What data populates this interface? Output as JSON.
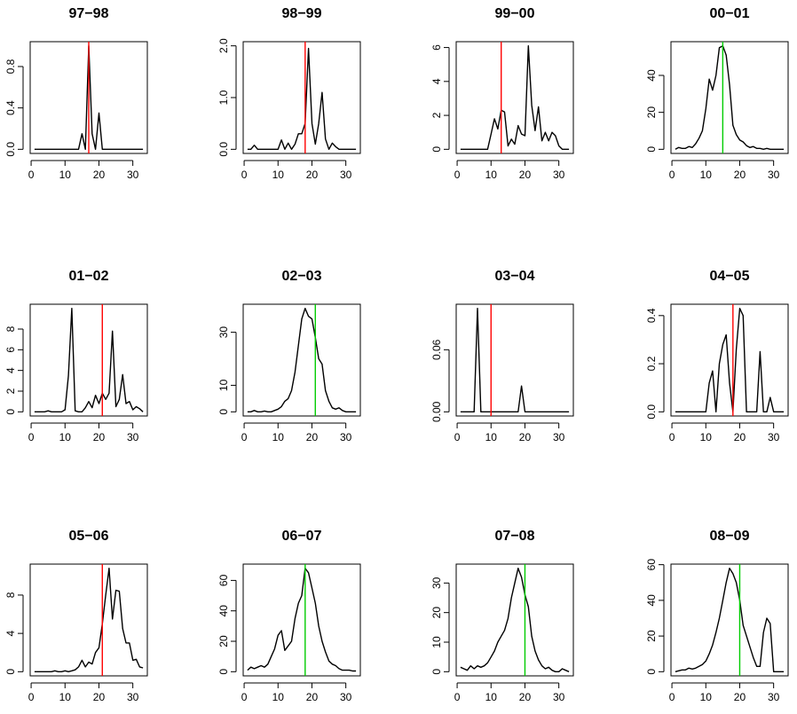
{
  "colors": {
    "series": "#000000",
    "marker_red": "#ff0000",
    "marker_green": "#00cc00",
    "frame": "#000000"
  },
  "chart_data": [
    {
      "type": "line",
      "title": "97−98",
      "x": [
        1,
        2,
        3,
        4,
        5,
        6,
        7,
        8,
        9,
        10,
        11,
        12,
        13,
        14,
        15,
        16,
        17,
        18,
        19,
        20,
        21,
        22,
        23,
        24,
        25,
        26,
        27,
        28,
        29,
        30,
        31,
        32,
        33
      ],
      "values": [
        0,
        0,
        0,
        0,
        0,
        0,
        0,
        0,
        0,
        0,
        0,
        0,
        0,
        0,
        0.15,
        0,
        1.0,
        0.15,
        0,
        0.35,
        0,
        0,
        0,
        0,
        0,
        0,
        0,
        0,
        0,
        0,
        0,
        0,
        0
      ],
      "marker": {
        "x": 17,
        "color": "red"
      },
      "xlim": [
        1,
        33
      ],
      "ylim": [
        0,
        1.0
      ],
      "xticks": [
        0,
        10,
        20,
        30
      ],
      "yticks": [
        0.0,
        0.4,
        0.8
      ],
      "xtick_labels": [
        "0",
        "10",
        "20",
        "30"
      ],
      "ytick_labels": [
        "0.0",
        "0.4",
        "0.8"
      ]
    },
    {
      "type": "line",
      "title": "98−99",
      "x": [
        1,
        2,
        3,
        4,
        5,
        6,
        7,
        8,
        9,
        10,
        11,
        12,
        13,
        14,
        15,
        16,
        17,
        18,
        19,
        20,
        21,
        22,
        23,
        24,
        25,
        26,
        27,
        28,
        29,
        30,
        31,
        32,
        33
      ],
      "values": [
        0,
        0,
        0.08,
        0,
        0,
        0,
        0,
        0,
        0,
        0,
        0.18,
        0,
        0.12,
        0,
        0.1,
        0.3,
        0.3,
        0.5,
        1.95,
        0.5,
        0.1,
        0.5,
        1.1,
        0.2,
        0,
        0.12,
        0.05,
        0,
        0,
        0,
        0,
        0,
        0
      ],
      "marker": {
        "x": 18,
        "color": "red"
      },
      "xlim": [
        1,
        33
      ],
      "ylim": [
        0,
        2.0
      ],
      "xticks": [
        0,
        10,
        20,
        30
      ],
      "yticks": [
        0.0,
        1.0,
        2.0
      ],
      "xtick_labels": [
        "0",
        "10",
        "20",
        "30"
      ],
      "ytick_labels": [
        "0.0",
        "1.0",
        "2.0"
      ]
    },
    {
      "type": "line",
      "title": "99−00",
      "x": [
        1,
        2,
        3,
        4,
        5,
        6,
        7,
        8,
        9,
        10,
        11,
        12,
        13,
        14,
        15,
        16,
        17,
        18,
        19,
        20,
        21,
        22,
        23,
        24,
        25,
        26,
        27,
        28,
        29,
        30,
        31,
        32,
        33
      ],
      "values": [
        0,
        0,
        0,
        0,
        0,
        0,
        0,
        0,
        0,
        0.9,
        1.8,
        1.2,
        2.3,
        2.2,
        0.2,
        0.6,
        0.3,
        1.4,
        0.9,
        0.8,
        6.1,
        2.6,
        1.1,
        2.5,
        0.5,
        1.0,
        0.5,
        1.0,
        0.8,
        0.2,
        0,
        0,
        0
      ],
      "marker": {
        "x": 13,
        "color": "red"
      },
      "xlim": [
        1,
        33
      ],
      "ylim": [
        0,
        6.1
      ],
      "xticks": [
        0,
        10,
        20,
        30
      ],
      "yticks": [
        0,
        2,
        4,
        6
      ],
      "xtick_labels": [
        "0",
        "10",
        "20",
        "30"
      ],
      "ytick_labels": [
        "0",
        "2",
        "4",
        "6"
      ]
    },
    {
      "type": "line",
      "title": "00−01",
      "x": [
        1,
        2,
        3,
        4,
        5,
        6,
        7,
        8,
        9,
        10,
        11,
        12,
        13,
        14,
        15,
        16,
        17,
        18,
        19,
        20,
        21,
        22,
        23,
        24,
        25,
        26,
        27,
        28,
        29,
        30,
        31,
        32,
        33
      ],
      "values": [
        0,
        1,
        0.5,
        0.5,
        1.5,
        1,
        3,
        6,
        10,
        22,
        38,
        32,
        40,
        55,
        56,
        51,
        35,
        13,
        8,
        5,
        4,
        2,
        1,
        1.5,
        0.5,
        0.5,
        0,
        0.5,
        0,
        0,
        0,
        0,
        0
      ],
      "marker": {
        "x": 15,
        "color": "green"
      },
      "xlim": [
        1,
        33
      ],
      "ylim": [
        0,
        56
      ],
      "xticks": [
        0,
        10,
        20,
        30
      ],
      "yticks": [
        0,
        20,
        40
      ],
      "xtick_labels": [
        "0",
        "10",
        "20",
        "30"
      ],
      "ytick_labels": [
        "0",
        "20",
        "40"
      ]
    },
    {
      "type": "line",
      "title": "01−02",
      "x": [
        1,
        2,
        3,
        4,
        5,
        6,
        7,
        8,
        9,
        10,
        11,
        12,
        13,
        14,
        15,
        16,
        17,
        18,
        19,
        20,
        21,
        22,
        23,
        24,
        25,
        26,
        27,
        28,
        29,
        30,
        31,
        32,
        33
      ],
      "values": [
        0,
        0,
        0,
        0,
        0.1,
        0,
        0,
        0,
        0,
        0.2,
        3.5,
        10,
        0.1,
        0,
        0,
        0.4,
        1.0,
        0.4,
        1.6,
        0.8,
        1.8,
        1.2,
        1.8,
        7.8,
        0.5,
        1.2,
        3.6,
        0.8,
        1.0,
        0.2,
        0.5,
        0.3,
        0
      ],
      "marker": {
        "x": 21,
        "color": "red"
      },
      "xlim": [
        1,
        33
      ],
      "ylim": [
        0,
        10
      ],
      "xticks": [
        0,
        10,
        20,
        30
      ],
      "yticks": [
        0,
        2,
        4,
        6,
        8
      ],
      "xtick_labels": [
        "0",
        "10",
        "20",
        "30"
      ],
      "ytick_labels": [
        "0",
        "2",
        "4",
        "6",
        "8"
      ]
    },
    {
      "type": "line",
      "title": "02−03",
      "x": [
        1,
        2,
        3,
        4,
        5,
        6,
        7,
        8,
        9,
        10,
        11,
        12,
        13,
        14,
        15,
        16,
        17,
        18,
        19,
        20,
        21,
        22,
        23,
        24,
        25,
        26,
        27,
        28,
        29,
        30,
        31,
        32,
        33
      ],
      "values": [
        0,
        0,
        0.5,
        0,
        0,
        0.3,
        0,
        0,
        0.5,
        1,
        2,
        4,
        5,
        8,
        15,
        25,
        35,
        39,
        36,
        35,
        28,
        20,
        18,
        8,
        4,
        1.5,
        1,
        1.5,
        0.5,
        0,
        0,
        0,
        0
      ],
      "marker": {
        "x": 21,
        "color": "green"
      },
      "xlim": [
        1,
        33
      ],
      "ylim": [
        0,
        39
      ],
      "xticks": [
        0,
        10,
        20,
        30
      ],
      "yticks": [
        0,
        10,
        30
      ],
      "xtick_labels": [
        "0",
        "10",
        "20",
        "30"
      ],
      "ytick_labels": [
        "0",
        "10",
        "30"
      ]
    },
    {
      "type": "line",
      "title": "03−04",
      "x": [
        1,
        2,
        3,
        4,
        5,
        6,
        7,
        8,
        9,
        10,
        11,
        12,
        13,
        14,
        15,
        16,
        17,
        18,
        19,
        20,
        21,
        22,
        23,
        24,
        25,
        26,
        27,
        28,
        29,
        30,
        31,
        32,
        33
      ],
      "values": [
        0,
        0,
        0,
        0,
        0,
        0.1,
        0,
        0,
        0,
        0,
        0,
        0,
        0,
        0,
        0,
        0,
        0,
        0,
        0.025,
        0,
        0,
        0,
        0,
        0,
        0,
        0,
        0,
        0,
        0,
        0,
        0,
        0,
        0
      ],
      "marker": {
        "x": 10,
        "color": "red"
      },
      "xlim": [
        1,
        33
      ],
      "ylim": [
        0,
        0.1
      ],
      "xticks": [
        0,
        10,
        20,
        30
      ],
      "yticks": [
        0.0,
        0.06
      ],
      "xtick_labels": [
        "0",
        "10",
        "20",
        "30"
      ],
      "ytick_labels": [
        "0.00",
        "0.06"
      ]
    },
    {
      "type": "line",
      "title": "04−05",
      "x": [
        1,
        2,
        3,
        4,
        5,
        6,
        7,
        8,
        9,
        10,
        11,
        12,
        13,
        14,
        15,
        16,
        17,
        18,
        19,
        20,
        21,
        22,
        23,
        24,
        25,
        26,
        27,
        28,
        29,
        30,
        31,
        32,
        33
      ],
      "values": [
        0,
        0,
        0,
        0,
        0,
        0,
        0,
        0,
        0,
        0,
        0.12,
        0.17,
        0,
        0.2,
        0.28,
        0.32,
        0.12,
        0,
        0.26,
        0.43,
        0.4,
        0,
        0,
        0,
        0,
        0.25,
        0,
        0,
        0.06,
        0,
        0,
        0,
        0
      ],
      "marker": {
        "x": 18,
        "color": "red"
      },
      "xlim": [
        1,
        33
      ],
      "ylim": [
        0,
        0.43
      ],
      "xticks": [
        0,
        10,
        20,
        30
      ],
      "yticks": [
        0.0,
        0.2,
        0.4
      ],
      "xtick_labels": [
        "0",
        "10",
        "20",
        "30"
      ],
      "ytick_labels": [
        "0.0",
        "0.2",
        "0.4"
      ]
    },
    {
      "type": "line",
      "title": "05−06",
      "x": [
        1,
        2,
        3,
        4,
        5,
        6,
        7,
        8,
        9,
        10,
        11,
        12,
        13,
        14,
        15,
        16,
        17,
        18,
        19,
        20,
        21,
        22,
        23,
        24,
        25,
        26,
        27,
        28,
        29,
        30,
        31,
        32,
        33
      ],
      "values": [
        0,
        0,
        0,
        0,
        0,
        0,
        0.1,
        0,
        0,
        0.1,
        0,
        0.1,
        0.2,
        0.5,
        1.2,
        0.5,
        1.0,
        0.8,
        2.0,
        2.5,
        5.0,
        8.0,
        10.8,
        5.5,
        8.5,
        8.4,
        4.5,
        3.0,
        3.0,
        1.2,
        1.3,
        0.5,
        0.4
      ],
      "marker": {
        "x": 21,
        "color": "red"
      },
      "xlim": [
        1,
        33
      ],
      "ylim": [
        0,
        10.8
      ],
      "xticks": [
        0,
        10,
        20,
        30
      ],
      "yticks": [
        0,
        4,
        8
      ],
      "xtick_labels": [
        "0",
        "10",
        "20",
        "30"
      ],
      "ytick_labels": [
        "0",
        "4",
        "8"
      ]
    },
    {
      "type": "line",
      "title": "06−07",
      "x": [
        1,
        2,
        3,
        4,
        5,
        6,
        7,
        8,
        9,
        10,
        11,
        12,
        13,
        14,
        15,
        16,
        17,
        18,
        19,
        20,
        21,
        22,
        23,
        24,
        25,
        26,
        27,
        28,
        29,
        30,
        31,
        32,
        33
      ],
      "values": [
        1,
        3,
        2,
        3,
        4,
        3,
        5,
        10,
        15,
        24,
        27,
        14,
        17,
        20,
        35,
        45,
        50,
        68,
        65,
        55,
        45,
        30,
        20,
        13,
        7,
        5,
        4,
        2,
        1,
        1,
        1,
        0.5,
        0.5
      ],
      "marker": {
        "x": 18,
        "color": "green"
      },
      "xlim": [
        1,
        33
      ],
      "ylim": [
        0,
        68
      ],
      "xticks": [
        0,
        10,
        20,
        30
      ],
      "yticks": [
        0,
        20,
        40,
        60
      ],
      "xtick_labels": [
        "0",
        "10",
        "20",
        "30"
      ],
      "ytick_labels": [
        "0",
        "20",
        "40",
        "60"
      ]
    },
    {
      "type": "line",
      "title": "07−08",
      "x": [
        1,
        2,
        3,
        4,
        5,
        6,
        7,
        8,
        9,
        10,
        11,
        12,
        13,
        14,
        15,
        16,
        17,
        18,
        19,
        20,
        21,
        22,
        23,
        24,
        25,
        26,
        27,
        28,
        29,
        30,
        31,
        32,
        33
      ],
      "values": [
        1.5,
        1,
        0.5,
        2,
        1,
        2,
        1.5,
        2,
        3,
        5,
        7,
        10,
        12,
        14,
        18,
        25,
        30,
        35,
        32,
        26,
        22,
        12,
        7,
        4,
        2,
        1,
        1.5,
        0.5,
        0,
        0,
        1,
        0.5,
        0
      ],
      "marker": {
        "x": 20,
        "color": "green"
      },
      "xlim": [
        1,
        33
      ],
      "ylim": [
        0,
        35
      ],
      "xticks": [
        0,
        10,
        20,
        30
      ],
      "yticks": [
        0,
        10,
        20,
        30
      ],
      "xtick_labels": [
        "0",
        "10",
        "20",
        "30"
      ],
      "ytick_labels": [
        "0",
        "10",
        "20",
        "30"
      ]
    },
    {
      "type": "line",
      "title": "08−09",
      "x": [
        1,
        2,
        3,
        4,
        5,
        6,
        7,
        8,
        9,
        10,
        11,
        12,
        13,
        14,
        15,
        16,
        17,
        18,
        19,
        20,
        21,
        22,
        23,
        24,
        25,
        26,
        27,
        28,
        29,
        30,
        31,
        32,
        33
      ],
      "values": [
        0,
        0.5,
        1,
        1,
        2,
        1.5,
        2,
        3,
        4,
        6,
        10,
        15,
        22,
        30,
        40,
        50,
        58,
        55,
        50,
        40,
        26,
        20,
        14,
        8,
        3,
        3,
        22,
        30,
        27,
        0,
        0,
        0,
        0
      ],
      "marker": {
        "x": 20,
        "color": "green"
      },
      "xlim": [
        1,
        33
      ],
      "ylim": [
        0,
        58
      ],
      "xticks": [
        0,
        10,
        20,
        30
      ],
      "yticks": [
        0,
        20,
        40,
        60
      ],
      "xtick_labels": [
        "0",
        "10",
        "20",
        "30"
      ],
      "ytick_labels": [
        "0",
        "20",
        "40",
        "60"
      ]
    }
  ]
}
